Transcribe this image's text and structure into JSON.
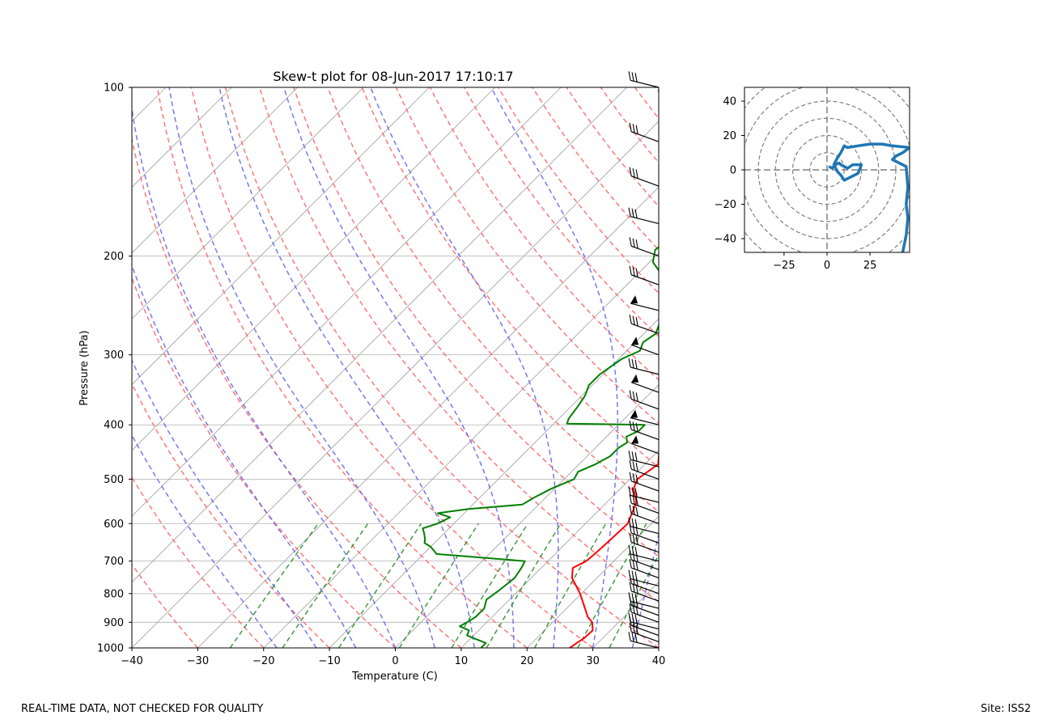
{
  "chart_data": [
    {
      "type": "skew-t",
      "title": "Skew-t plot for 08-Jun-2017 17:10:17",
      "xlabel": "Temperature (C)",
      "ylabel": "Pressure (hPa)",
      "xlim": [
        -40,
        40
      ],
      "ylim": [
        1000,
        100
      ],
      "x_ticks": [
        "−40",
        "−30",
        "−20",
        "−10",
        "0",
        "10",
        "20",
        "30",
        "40"
      ],
      "x_tick_values": [
        -40,
        -30,
        -20,
        -10,
        0,
        10,
        20,
        30,
        40
      ],
      "y_ticks": [
        "100",
        "200",
        "300",
        "400",
        "500",
        "600",
        "700",
        "800",
        "900",
        "1000"
      ],
      "y_tick_values": [
        100,
        200,
        300,
        400,
        500,
        600,
        700,
        800,
        900,
        1000
      ],
      "colors": {
        "temperature": "#ff0000",
        "dewpoint": "#008000",
        "dry_adiabat": "#ff6060",
        "moist_adiabat": "#6060ee",
        "mixing_ratio": "#228b22",
        "isotherm": "#a0a0a0"
      },
      "series": [
        {
          "name": "Temperature",
          "points": [
            [
              1000,
              26.5
            ],
            [
              980,
              26.8
            ],
            [
              960,
              27.2
            ],
            [
              930,
              27.3
            ],
            [
              900,
              26.0
            ],
            [
              880,
              24.5
            ],
            [
              850,
              22.8
            ],
            [
              800,
              19.8
            ],
            [
              750,
              16.2
            ],
            [
              720,
              14.8
            ],
            [
              700,
              15.8
            ],
            [
              680,
              16.0
            ],
            [
              650,
              16.2
            ],
            [
              600,
              16.4
            ],
            [
              550,
              14.5
            ],
            [
              520,
              12.0
            ],
            [
              500,
              11.1
            ],
            [
              470,
              12.0
            ],
            [
              450,
              10.5
            ],
            [
              430,
              10.2
            ],
            [
              410,
              9.6
            ],
            [
              400,
              8.5
            ],
            [
              380,
              7.8
            ],
            [
              360,
              6.0
            ],
            [
              340,
              4.0
            ],
            [
              320,
              1.5
            ],
            [
              300,
              -1.0
            ],
            [
              280,
              -3.5
            ],
            [
              260,
              -6.0
            ],
            [
              240,
              -8.5
            ],
            [
              220,
              -11.5
            ],
            [
              205,
              -14.0
            ],
            [
              195,
              -15.5
            ],
            [
              185,
              -15.8
            ],
            [
              178,
              -14.5
            ],
            [
              172,
              -12.5
            ],
            [
              168,
              -11.3
            ],
            [
              160,
              -11.0
            ],
            [
              152,
              -10.5
            ],
            [
              145,
              -10.3
            ],
            [
              138,
              -10.2
            ],
            [
              132,
              -10.0
            ],
            [
              128,
              -9.2
            ],
            [
              124,
              -6.8
            ],
            [
              120,
              -3.8
            ],
            [
              116,
              -1.5
            ],
            [
              112,
              0.5
            ],
            [
              108,
              2.5
            ],
            [
              105,
              3.0
            ],
            [
              100,
              4.0
            ]
          ]
        },
        {
          "name": "Dewpoint",
          "points": [
            [
              1000,
              13.0
            ],
            [
              980,
              13.0
            ],
            [
              965,
              11.0
            ],
            [
              950,
              9.0
            ],
            [
              930,
              8.5
            ],
            [
              915,
              6.5
            ],
            [
              900,
              7.0
            ],
            [
              880,
              7.5
            ],
            [
              850,
              7.5
            ],
            [
              820,
              6.5
            ],
            [
              790,
              7.0
            ],
            [
              750,
              7.5
            ],
            [
              720,
              7.0
            ],
            [
              700,
              6.5
            ],
            [
              680,
              -8.0
            ],
            [
              660,
              -10.0
            ],
            [
              650,
              -11.5
            ],
            [
              640,
              -12.0
            ],
            [
              625,
              -13.0
            ],
            [
              612,
              -14.0
            ],
            [
              600,
              -12.5
            ],
            [
              585,
              -11.5
            ],
            [
              575,
              -14.0
            ],
            [
              565,
              -10.0
            ],
            [
              555,
              -2.5
            ],
            [
              540,
              -1.8
            ],
            [
              520,
              -0.5
            ],
            [
              500,
              1.5
            ],
            [
              485,
              1.0
            ],
            [
              470,
              2.5
            ],
            [
              455,
              3.5
            ],
            [
              440,
              3.5
            ],
            [
              430,
              4.0
            ],
            [
              420,
              3.0
            ],
            [
              410,
              4.0
            ],
            [
              400,
              4.0
            ],
            [
              398,
              -8.0
            ],
            [
              390,
              -8.5
            ],
            [
              370,
              -9.0
            ],
            [
              355,
              -9.5
            ],
            [
              340,
              -10.5
            ],
            [
              325,
              -10.5
            ],
            [
              305,
              -9.5
            ],
            [
              295,
              -8.0
            ],
            [
              285,
              -8.8
            ],
            [
              275,
              -8.2
            ],
            [
              260,
              -9.5
            ],
            [
              245,
              -10.0
            ],
            [
              235,
              -12.0
            ],
            [
              225,
              -14.0
            ],
            [
              215,
              -16.5
            ],
            [
              205,
              -19.5
            ],
            [
              195,
              -21.0
            ],
            [
              185,
              -20.5
            ],
            [
              175,
              -20.0
            ],
            [
              170,
              -19.0
            ],
            [
              165,
              -21.0
            ],
            [
              160,
              -23.0
            ],
            [
              150,
              -24.5
            ],
            [
              140,
              -25.0
            ],
            [
              135,
              -25.0
            ],
            [
              130,
              -24.5
            ],
            [
              125,
              -23.0
            ],
            [
              120,
              -23.0
            ],
            [
              115,
              -22.5
            ],
            [
              110,
              -21.5
            ],
            [
              105,
              -20.5
            ],
            [
              100,
              -19.0
            ]
          ]
        }
      ],
      "wind_barbs": "heights 100 to 1000 hPa at right edge"
    },
    {
      "type": "hodograph",
      "xlim": [
        -48,
        48
      ],
      "ylim": [
        -48,
        48
      ],
      "x_ticks": [
        "−25",
        "0",
        "25"
      ],
      "x_tick_values": [
        -25,
        0,
        25
      ],
      "y_ticks": [
        "40",
        "20",
        "0",
        "−20",
        "−40"
      ],
      "y_tick_values": [
        40,
        20,
        0,
        -20,
        -40
      ],
      "rings": [
        10,
        20,
        30,
        40,
        50,
        60
      ],
      "color": "#1f77b4",
      "trace": [
        [
          1,
          2
        ],
        [
          3,
          1
        ],
        [
          5,
          3
        ],
        [
          7,
          4
        ],
        [
          8,
          3
        ],
        [
          10,
          2
        ],
        [
          12,
          1
        ],
        [
          15,
          3
        ],
        [
          20,
          3
        ],
        [
          18,
          -2
        ],
        [
          10,
          -6
        ],
        [
          8,
          -3
        ],
        [
          6,
          -1
        ],
        [
          4,
          3
        ],
        [
          6,
          7
        ],
        [
          8,
          10
        ],
        [
          10,
          14
        ],
        [
          12,
          13
        ],
        [
          18,
          14
        ],
        [
          25,
          15
        ],
        [
          32,
          15
        ],
        [
          38,
          14
        ],
        [
          48,
          13
        ],
        [
          44,
          10
        ],
        [
          40,
          8
        ],
        [
          38,
          6
        ],
        [
          46,
          2
        ],
        [
          47,
          -10
        ],
        [
          46,
          -20
        ],
        [
          47,
          -28
        ],
        [
          46,
          -38
        ],
        [
          44,
          -48
        ]
      ]
    }
  ],
  "footer": {
    "left": "REAL-TIME DATA, NOT CHECKED FOR QUALITY",
    "right": "Site: ISS2"
  }
}
